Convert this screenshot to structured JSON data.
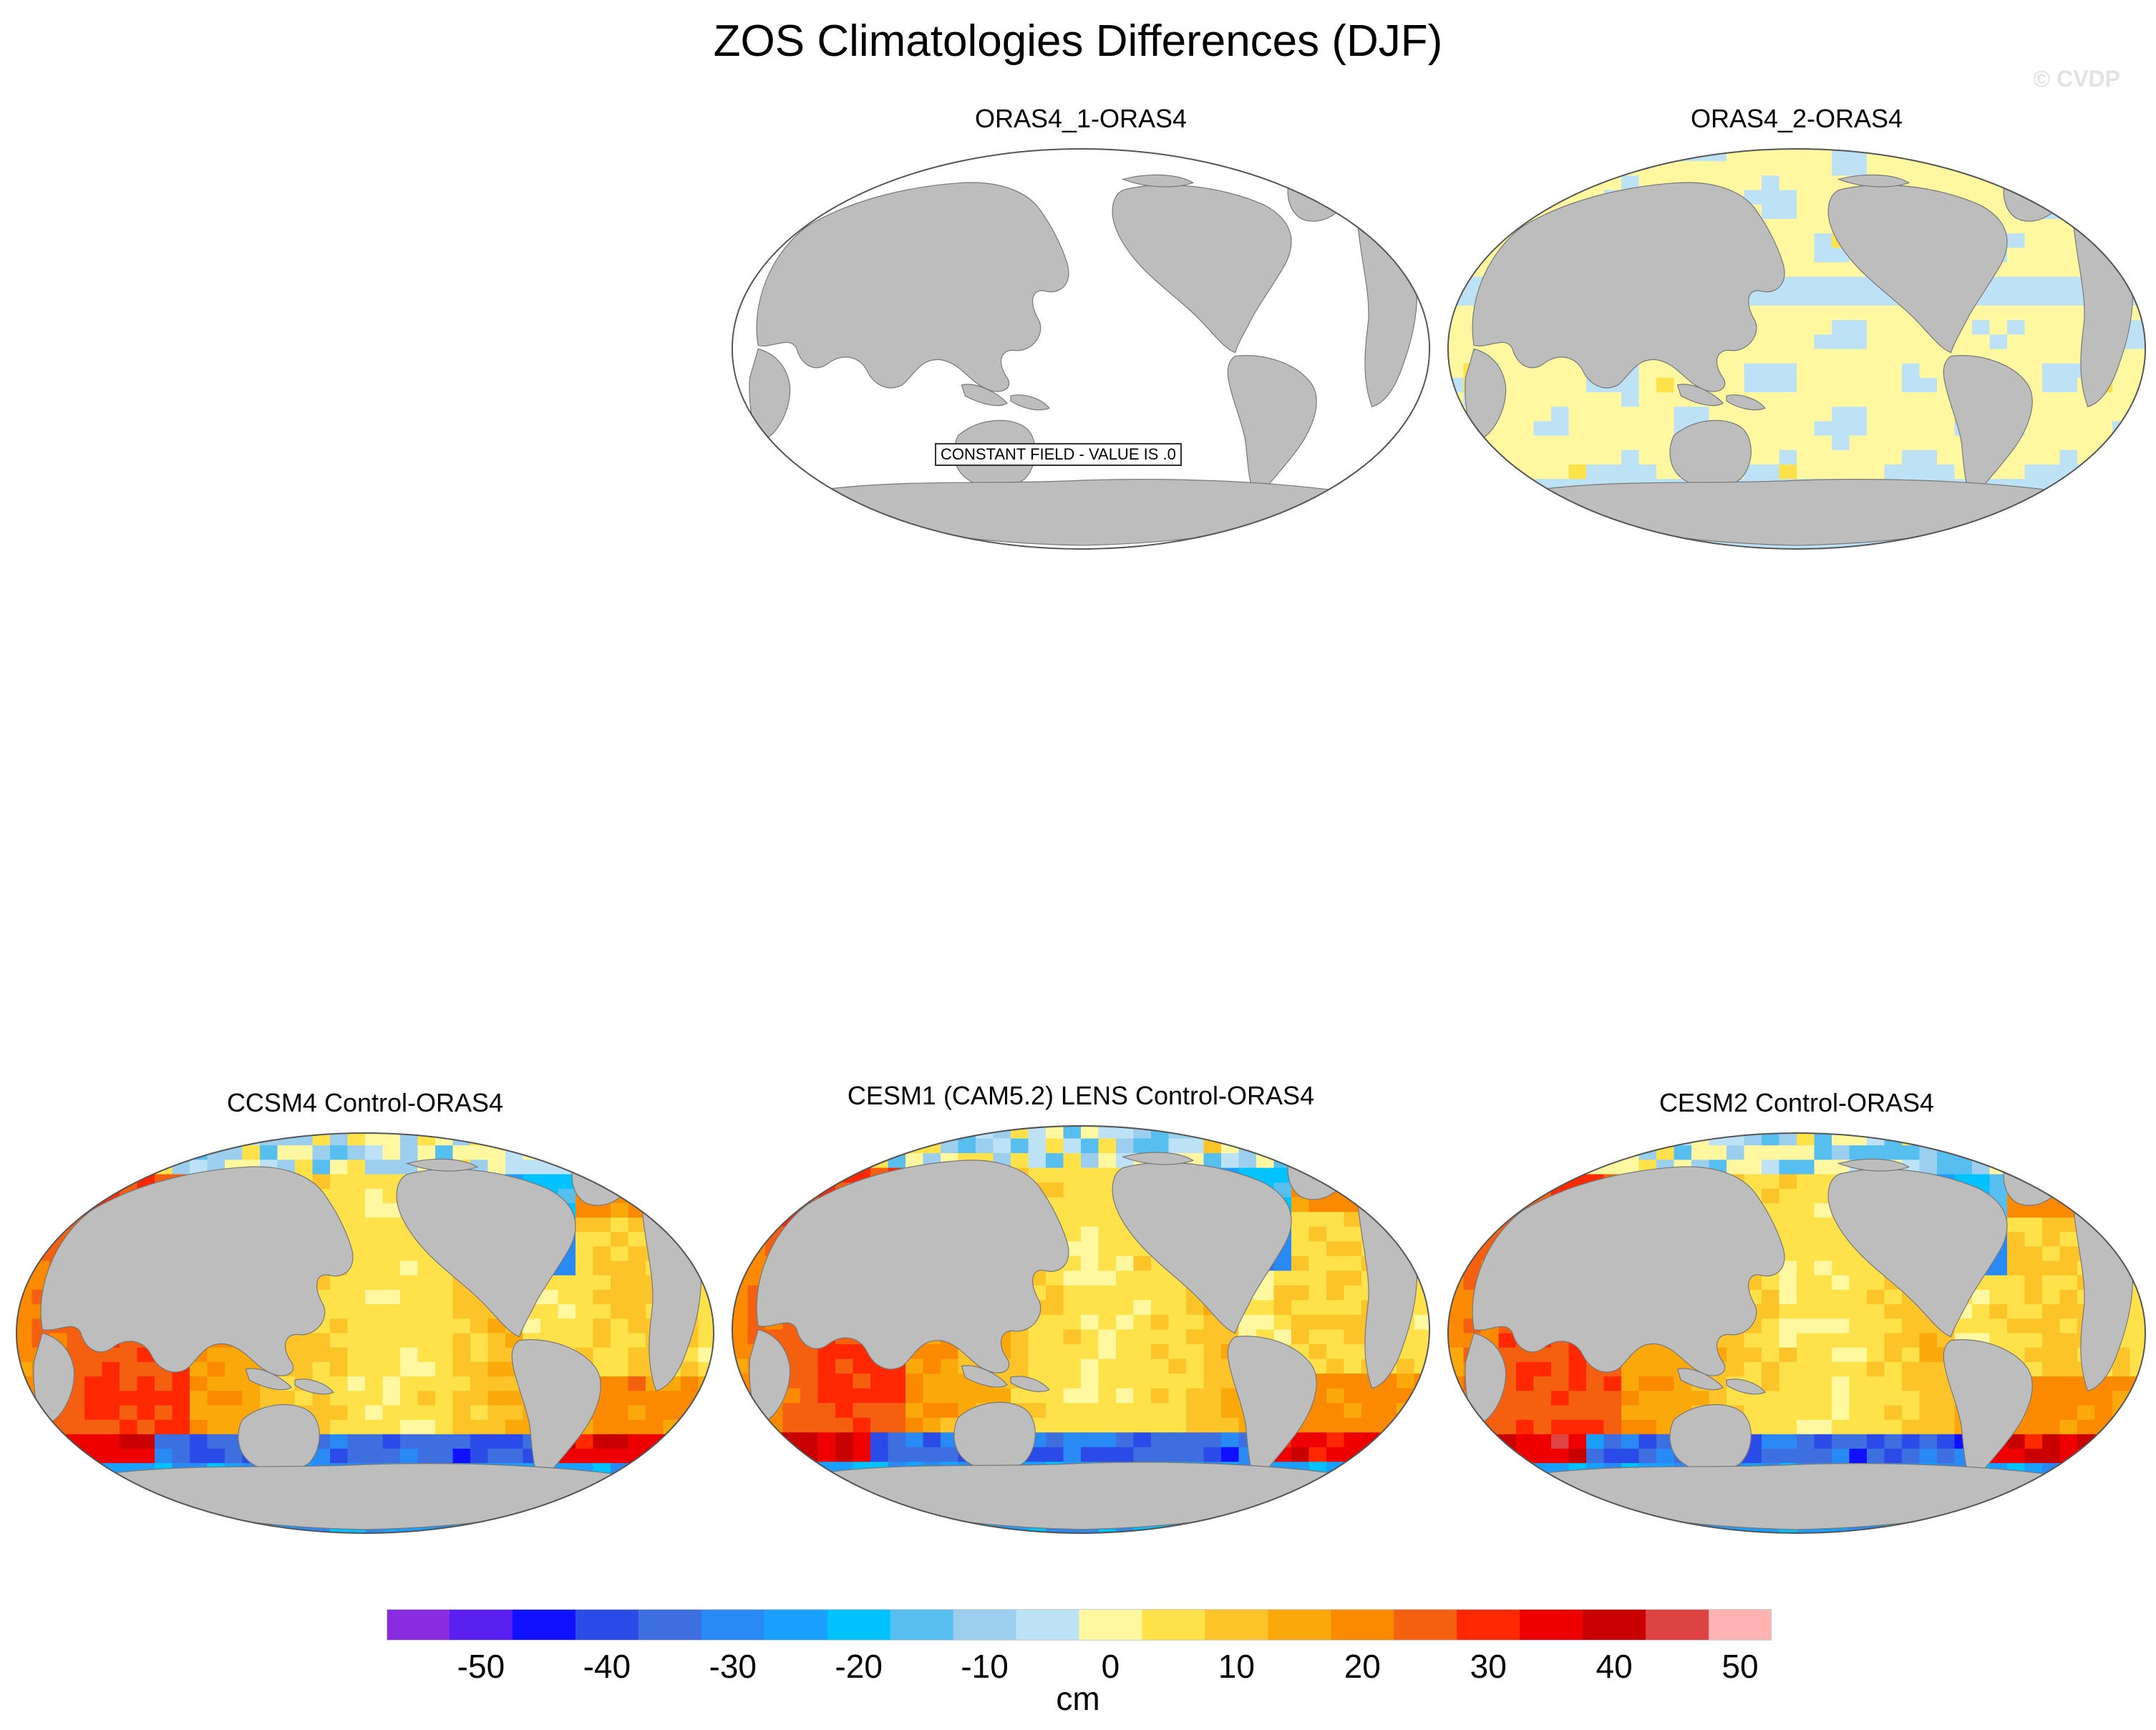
{
  "title": "ZOS Climatologies Differences (DJF)",
  "watermark": "© CVDP",
  "panels": [
    {
      "title": "ORAS4_1-ORAS4",
      "note": "CONSTANT FIELD - VALUE IS .0",
      "field": "constant"
    },
    {
      "title": "ORAS4_2-ORAS4",
      "field": "near-zero"
    },
    {
      "title": "CCSM4 Control-ORAS4",
      "field": "model"
    },
    {
      "title": "CESM1 (CAM5.2) LENS Control-ORAS4",
      "field": "model"
    },
    {
      "title": "CESM2 Control-ORAS4",
      "field": "model"
    }
  ],
  "colorbar": {
    "unit": "cm",
    "labels": [
      "-50",
      "-40",
      "-30",
      "-20",
      "-10",
      "0",
      "10",
      "20",
      "30",
      "40",
      "50"
    ],
    "colors": [
      "#8a2be2",
      "#5a1ff0",
      "#1010ff",
      "#2b4be8",
      "#3d6fe0",
      "#2a8af5",
      "#189fff",
      "#00c2ff",
      "#56bff0",
      "#9ccfee",
      "#bde2f6",
      "#fff8a0",
      "#ffe14a",
      "#fcc428",
      "#fba80a",
      "#fb8a00",
      "#f56010",
      "#ff2800",
      "#ee0000",
      "#c80000",
      "#de4444",
      "#ffb2b2"
    ]
  },
  "land_color": "#bdbdbd",
  "ocean_color": "#ffffff"
}
